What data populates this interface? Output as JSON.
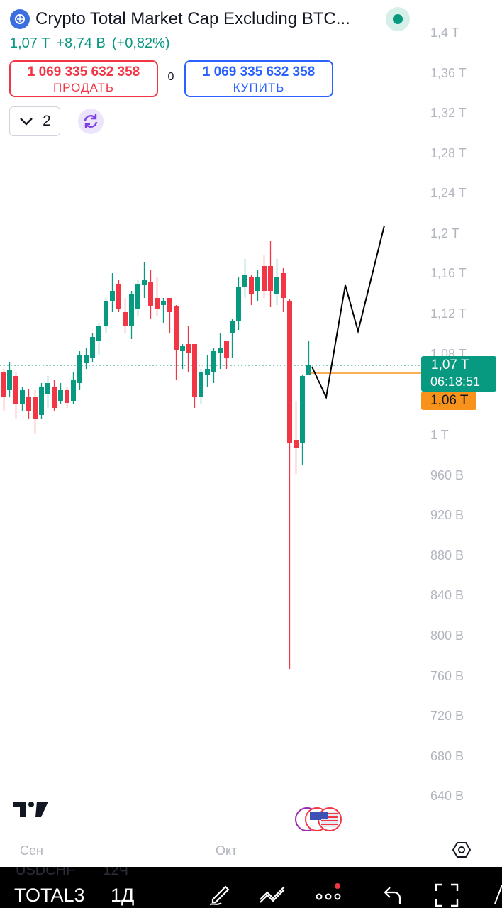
{
  "header": {
    "symbol_title": "Crypto Total Market Cap Excluding BTC...",
    "price": "1,07 T",
    "change": "+8,74 B",
    "change_pct": "(+0,82%)"
  },
  "trade": {
    "sell_amount": "1 069 335 632 358",
    "sell_label": "ПРОДАТЬ",
    "spread": "0",
    "buy_amount": "1 069 335 632 358",
    "buy_label": "КУПИТЬ"
  },
  "controls": {
    "layer_count": "2",
    "chevron_icon": "chevron-down-icon",
    "refresh_icon": "refresh-icon"
  },
  "price_axis": {
    "labels": [
      "1,4 T",
      "1,36 T",
      "1,32 T",
      "1,28 T",
      "1,24 T",
      "1,2 T",
      "1,16 T",
      "1,12 T",
      "1,08 T",
      "1 T",
      "960 B",
      "920 B",
      "880 B",
      "840 B",
      "800 B",
      "760 B",
      "720 B",
      "680 B",
      "640 B"
    ],
    "current_price": "1,07 T",
    "countdown": "06:18:51",
    "alert_price": "1,06 T"
  },
  "time_axis": {
    "labels": [
      "Сен",
      "Окт"
    ]
  },
  "bottom_bar": {
    "symbol": "TOTAL3",
    "interval": "1Д",
    "ghost_symbol": "USDCHF",
    "ghost_interval": "12Ч"
  },
  "colors": {
    "up": "#089981",
    "down": "#f23645",
    "accent_blue": "#2962ff",
    "alert_orange": "#f7931a"
  }
}
